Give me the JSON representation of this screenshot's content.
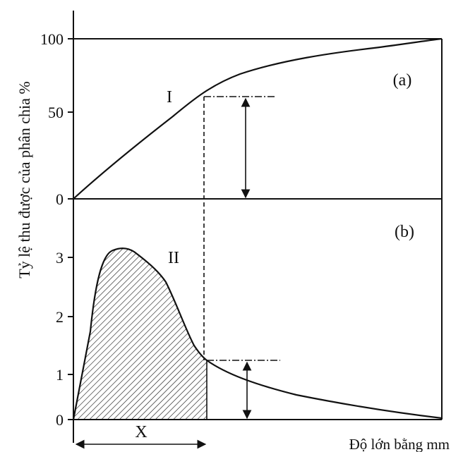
{
  "y_axis_label": "Tỷ lệ thu được của phân chia %",
  "x_axis_label": "Độ lớn bằng mm",
  "panel_a": {
    "label": "(a)",
    "curve_label": "I",
    "ticks": [
      "0",
      "50",
      "100"
    ]
  },
  "panel_b": {
    "label": "(b)",
    "curve_label": "II",
    "ticks": [
      "0",
      "1",
      "2",
      "3"
    ]
  },
  "x_marker_label": "X"
}
